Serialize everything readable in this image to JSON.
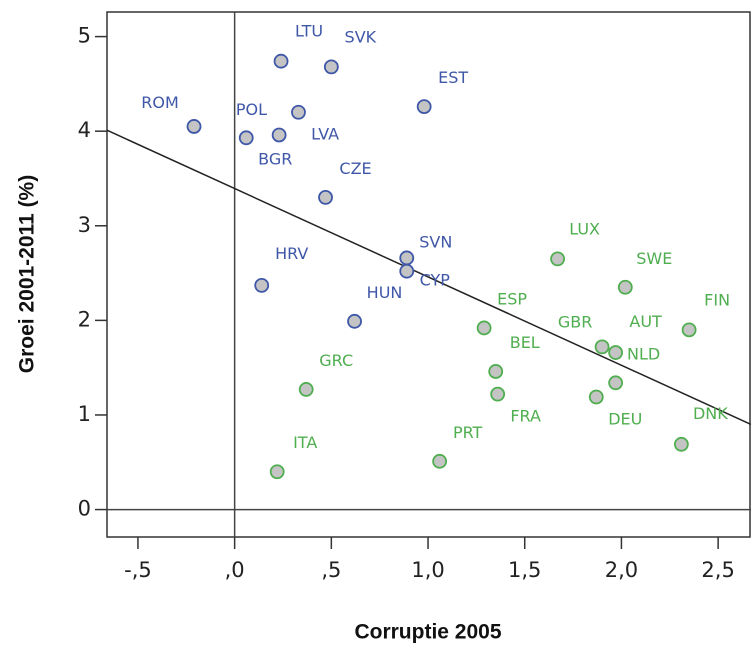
{
  "chart_data": {
    "type": "scatter",
    "x_label": "Corruptie 2005",
    "y_label": "Groei 2001-2011 (%)",
    "xlim": [
      -0.66,
      2.67
    ],
    "ylim": [
      -0.29,
      5.26
    ],
    "xticks": [
      {
        "value": -0.5,
        "label": "-,5"
      },
      {
        "value": 0,
        "label": ",0"
      },
      {
        "value": 0.5,
        "label": ",5"
      },
      {
        "value": 1.0,
        "label": "1,0"
      },
      {
        "value": 1.5,
        "label": "1,5"
      },
      {
        "value": 2.0,
        "label": "2,0"
      },
      {
        "value": 2.5,
        "label": "2,5"
      }
    ],
    "yticks": [
      0,
      1,
      2,
      3,
      4,
      5
    ],
    "reference_lines": {
      "x": 0,
      "y": 0
    },
    "trend_line": {
      "x": [
        -0.66,
        2.67
      ],
      "y": [
        4.01,
        0.9
      ]
    },
    "series": [
      {
        "color": "#3f57a8",
        "fill": "#c4c4c4",
        "labels": [
          "ROM",
          "LTU",
          "SVK",
          "EST",
          "POL",
          "LVA",
          "BGR",
          "CZE",
          "SVN",
          "CYP",
          "HRV",
          "HUN"
        ],
        "x": [
          -0.21,
          0.24,
          0.5,
          0.98,
          0.33,
          0.23,
          0.06,
          0.47,
          0.89,
          0.89,
          0.14,
          0.62
        ],
        "values": [
          4.05,
          4.74,
          4.68,
          4.26,
          4.2,
          3.96,
          3.93,
          3.3,
          2.66,
          2.52,
          2.37,
          1.99
        ]
      },
      {
        "color": "#4fae4f",
        "fill": "#c4c4c4",
        "labels": [
          "LUX",
          "SWE",
          "FIN",
          "ESP",
          "GBR",
          "AUT",
          "NLD",
          "DEU",
          "DNK",
          "BEL",
          "FRA",
          "GRC",
          "ITA",
          "PRT"
        ],
        "x": [
          1.67,
          2.02,
          2.35,
          1.29,
          1.9,
          1.97,
          1.97,
          1.87,
          2.31,
          1.35,
          1.36,
          0.37,
          0.22,
          1.06
        ],
        "values": [
          2.65,
          2.35,
          1.9,
          1.92,
          1.72,
          1.66,
          1.34,
          1.19,
          0.69,
          1.46,
          1.22,
          1.27,
          0.4,
          0.51
        ]
      }
    ]
  }
}
